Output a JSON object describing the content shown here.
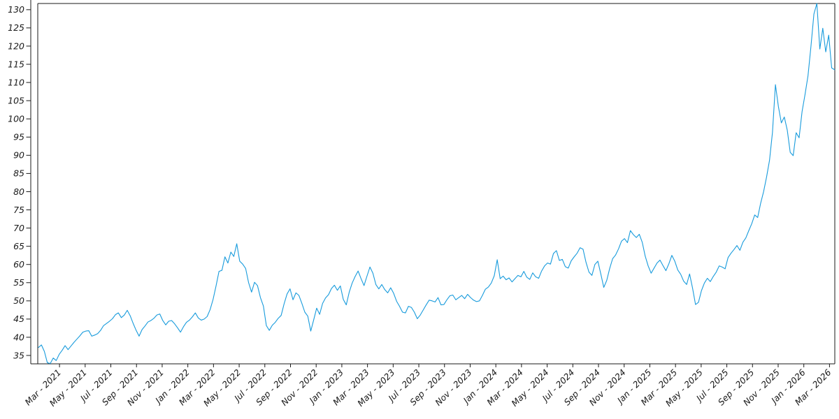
{
  "chart_data": {
    "type": "line",
    "title": "",
    "xlabel": "",
    "ylabel": "",
    "grid": false,
    "legend_position": "none",
    "line_color": "#189bdc",
    "axis_color": "#1a1a1a",
    "background_color": "#ffffff",
    "x_tick_labels": [
      "Mar - 2021",
      "May - 2021",
      "Jul - 2021",
      "Sep - 2021",
      "Nov - 2021",
      "Jan - 2022",
      "Mar - 2022",
      "May - 2022",
      "Jul - 2022",
      "Sep - 2022",
      "Nov - 2022",
      "Jan - 2023",
      "Mar - 2023",
      "May - 2023",
      "Jul - 2023",
      "Sep - 2023",
      "Nov - 2023",
      "Jan - 2024",
      "Mar - 2024",
      "May - 2024",
      "Jul - 2024",
      "Sep - 2024",
      "Nov - 2024",
      "Jan - 2025",
      "Mar - 2025",
      "May - 2025",
      "Jul - 2025",
      "Sep - 2025",
      "Nov - 2025",
      "Jan - 2026",
      "Mar - 2026"
    ],
    "x_tick_interval_months": 2,
    "y_ticks": [
      35,
      40,
      45,
      50,
      55,
      60,
      65,
      70,
      75,
      80,
      85,
      90,
      95,
      100,
      105,
      110,
      115,
      120,
      125,
      130
    ],
    "ylim": [
      32.7,
      131.7
    ],
    "x_start_month_offset": -1.64,
    "x_end_month_offset": 60.4,
    "point_interval_days": 7,
    "series": [
      {
        "name": "value",
        "values": [
          37.2,
          37.9,
          36.1,
          33.0,
          32.8,
          34.3,
          33.6,
          35.3,
          36.4,
          37.7,
          36.6,
          37.6,
          38.6,
          39.5,
          40.4,
          41.4,
          41.7,
          41.8,
          40.3,
          40.6,
          41.0,
          41.9,
          43.2,
          43.8,
          44.4,
          45.1,
          46.2,
          46.7,
          45.4,
          46.1,
          47.4,
          45.9,
          43.8,
          41.9,
          40.3,
          42.1,
          43.1,
          44.2,
          44.6,
          45.2,
          46.1,
          46.4,
          44.6,
          43.4,
          44.4,
          44.6,
          43.7,
          42.6,
          41.4,
          42.9,
          44.1,
          44.7,
          45.6,
          46.7,
          45.3,
          44.7,
          45.0,
          45.7,
          47.6,
          50.4,
          54.1,
          58.1,
          58.4,
          62.1,
          60.4,
          63.4,
          62.2,
          65.7,
          60.9,
          60.1,
          58.9,
          55.0,
          52.4,
          55.1,
          54.2,
          50.9,
          48.6,
          43.2,
          41.9,
          43.3,
          44.1,
          45.2,
          46.0,
          49.2,
          51.9,
          53.3,
          50.3,
          52.2,
          51.5,
          49.3,
          46.9,
          45.8,
          41.7,
          44.8,
          48.0,
          46.3,
          49.3,
          50.8,
          51.7,
          53.4,
          54.3,
          52.9,
          54.1,
          50.4,
          48.9,
          52.4,
          54.9,
          56.7,
          58.2,
          56.1,
          54.2,
          56.8,
          59.3,
          57.6,
          54.5,
          53.3,
          54.5,
          53.1,
          52.2,
          53.6,
          52.1,
          49.9,
          48.5,
          46.9,
          46.7,
          48.5,
          48.2,
          46.9,
          45.1,
          46.1,
          47.5,
          48.9,
          50.2,
          50.0,
          49.7,
          50.9,
          48.9,
          49.0,
          50.3,
          51.4,
          51.6,
          50.3,
          50.9,
          51.5,
          50.6,
          51.8,
          50.9,
          50.2,
          49.8,
          50.0,
          51.5,
          53.2,
          53.8,
          54.9,
          56.9,
          61.3,
          56.1,
          56.8,
          55.8,
          56.3,
          55.2,
          56.1,
          57.0,
          56.6,
          58.1,
          56.5,
          55.9,
          57.7,
          56.6,
          56.2,
          58.2,
          59.6,
          60.4,
          60.1,
          63.0,
          63.8,
          61.1,
          61.4,
          59.4,
          59.0,
          61.0,
          62.1,
          63.1,
          64.6,
          64.2,
          60.6,
          57.9,
          57.0,
          60.0,
          60.9,
          57.4,
          53.7,
          55.6,
          58.9,
          61.6,
          62.6,
          64.3,
          66.4,
          67.1,
          66.0,
          69.3,
          68.2,
          67.4,
          68.3,
          66.1,
          62.3,
          59.6,
          57.6,
          59.0,
          60.4,
          61.2,
          59.7,
          58.3,
          60.2,
          62.5,
          60.9,
          58.5,
          57.3,
          55.4,
          54.5,
          57.4,
          53.5,
          49.0,
          49.6,
          52.8,
          54.9,
          56.2,
          55.3,
          56.7,
          57.9,
          59.6,
          59.3,
          58.8,
          61.9,
          63.1,
          64.1,
          65.2,
          63.9,
          66.1,
          67.3,
          69.3,
          71.2,
          73.6,
          72.9,
          76.8,
          80.0,
          84.0,
          88.6,
          96.3,
          109.4,
          103.4,
          98.9,
          100.5,
          96.9,
          90.8,
          89.9,
          96.2,
          94.8,
          102.0,
          106.7,
          111.8,
          119.9,
          128.8,
          131.7,
          119.2,
          124.9,
          118.4,
          123.0,
          114.0,
          113.5
        ]
      }
    ]
  }
}
